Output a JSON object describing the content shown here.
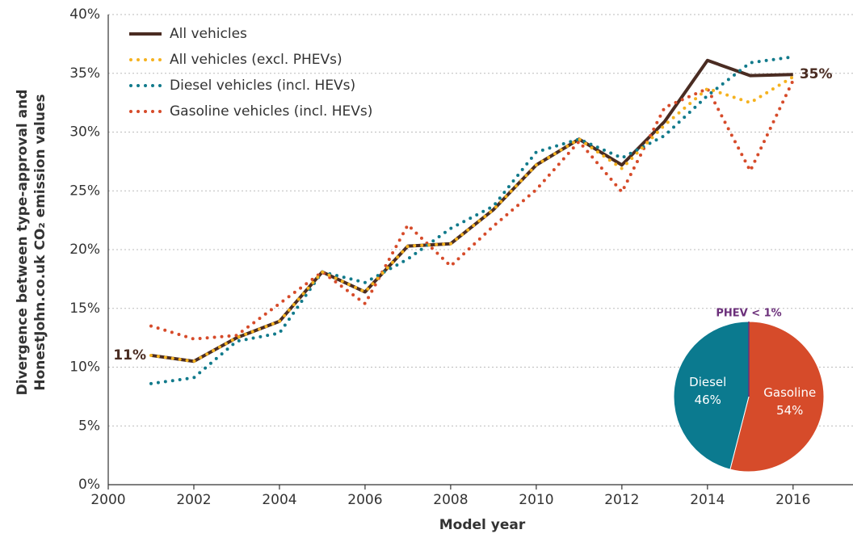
{
  "chart_data": {
    "type": "line",
    "x_label": "Model year",
    "y_label": [
      "Divergence between type-approval and",
      "HonestJohn.co.uk CO₂ emission values"
    ],
    "x": [
      2001,
      2002,
      2003,
      2004,
      2005,
      2006,
      2007,
      2008,
      2009,
      2010,
      2011,
      2012,
      2013,
      2014,
      2015,
      2016
    ],
    "series": [
      {
        "name": "All vehicles",
        "color": "#4a2c22",
        "style": "solid",
        "values": [
          11.0,
          10.5,
          12.5,
          13.9,
          18.1,
          16.4,
          20.3,
          20.5,
          23.4,
          27.2,
          29.4,
          27.2,
          30.9,
          36.1,
          34.8,
          34.9
        ]
      },
      {
        "name": "All vehicles (excl. PHEVs)",
        "color": "#f5b21f",
        "style": "dotted",
        "values": [
          11.0,
          10.5,
          12.5,
          13.9,
          18.1,
          16.4,
          20.3,
          20.5,
          23.4,
          27.2,
          29.4,
          26.9,
          30.6,
          33.7,
          32.5,
          34.7
        ]
      },
      {
        "name": "Diesel vehicles (incl. HEVs)",
        "color": "#117a8b",
        "style": "dotted",
        "values": [
          8.6,
          9.1,
          12.2,
          12.9,
          18.1,
          17.2,
          19.2,
          21.8,
          23.7,
          28.3,
          29.4,
          27.8,
          29.7,
          33.1,
          35.9,
          36.4
        ]
      },
      {
        "name": "Gasoline vehicles (incl. HEVs)",
        "color": "#d64b2a",
        "style": "dotted",
        "values": [
          13.5,
          12.4,
          12.7,
          15.4,
          18.1,
          15.4,
          22.1,
          18.6,
          22.0,
          25.1,
          29.2,
          24.9,
          32.1,
          33.7,
          26.7,
          34.4
        ]
      }
    ],
    "annotations": [
      "11%",
      "35%"
    ],
    "xlim": [
      2000,
      2017.4
    ],
    "xticks": [
      2000,
      2002,
      2004,
      2006,
      2008,
      2010,
      2012,
      2014,
      2016
    ],
    "ylim": [
      0,
      40
    ],
    "yticks": [
      {
        "value": 0,
        "label": "0%"
      },
      {
        "value": 5,
        "label": "5%"
      },
      {
        "value": 10,
        "label": "10%"
      },
      {
        "value": 15,
        "label": "15%"
      },
      {
        "value": 20,
        "label": "20%"
      },
      {
        "value": 25,
        "label": "25%"
      },
      {
        "value": 30,
        "label": "30%"
      },
      {
        "value": 35,
        "label": "35%"
      },
      {
        "value": 40,
        "label": "40%"
      }
    ],
    "grid": true,
    "legend": "upper left",
    "inset": {
      "type": "pie",
      "categories": [
        "Gasoline",
        "Diesel"
      ],
      "values": [
        54,
        46
      ],
      "value_labels": [
        "54%",
        "46%"
      ],
      "colors": [
        "#d64b2a",
        "#0b7a8f"
      ],
      "note": "PHEV < 1%",
      "note_color": "#6b2f7a"
    }
  }
}
